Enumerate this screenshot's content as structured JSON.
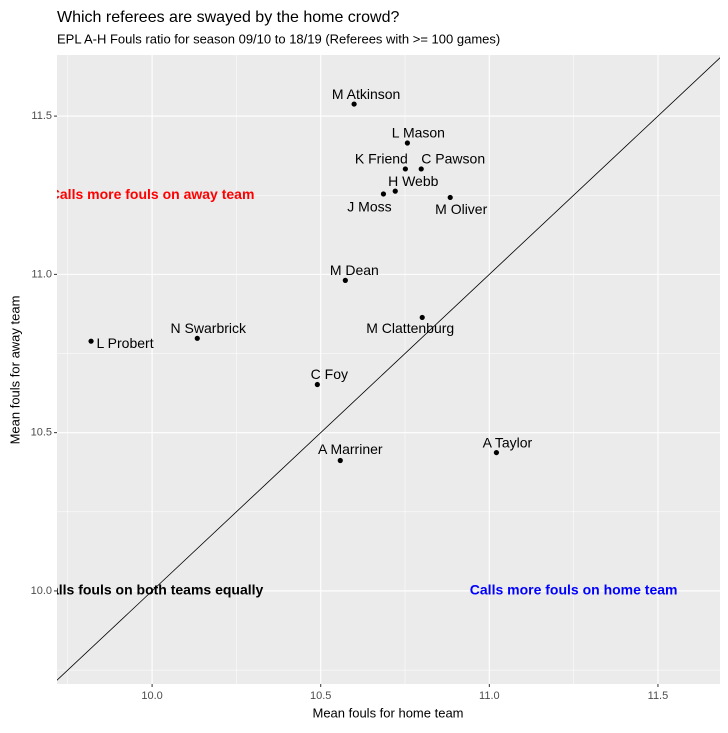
{
  "chart_data": {
    "type": "scatter",
    "title": "Which referees are swayed by the home crowd?",
    "subtitle": "EPL A-H Fouls ratio for season 09/10 to 18/19 (Referees with >= 100 games)",
    "x_label": "Mean fouls for home team",
    "y_label": "Mean fouls for away team",
    "labels": [
      "M Atkinson",
      "L Mason",
      "K Friend",
      "C Pawson",
      "H Webb",
      "J Moss",
      "M Oliver",
      "M Dean",
      "N Swarbrick",
      "L Probert",
      "M Clattenburg",
      "C Foy",
      "A Marriner",
      "A Taylor"
    ],
    "x": [
      10.599,
      10.757,
      10.751,
      10.798,
      10.721,
      10.686,
      10.884,
      10.573,
      10.134,
      9.819,
      10.801,
      10.49,
      10.558,
      11.021
    ],
    "values": [
      11.538,
      11.415,
      11.333,
      11.333,
      11.263,
      11.254,
      11.243,
      10.981,
      10.798,
      10.789,
      10.864,
      10.652,
      10.412,
      10.437
    ],
    "color": "#000000",
    "reference_line": "y = x",
    "annotations": [
      {
        "text": "Calls more fouls on away team",
        "x": 10.0,
        "y": 11.25,
        "color": "#ff0000"
      },
      {
        "text": "Calls fouls on both teams equally",
        "x": 10.0,
        "y": 10.0,
        "color": "#000000"
      },
      {
        "text": "Calls more fouls on home team",
        "x": 11.25,
        "y": 10.0,
        "color": "#0000ff"
      }
    ],
    "xlim": [
      9.718,
      11.684
    ],
    "ylim": [
      9.706,
      11.693
    ],
    "xticks": [
      {
        "value": 10,
        "label": "10.0"
      },
      {
        "value": 10.5,
        "label": "10.5"
      },
      {
        "value": 11,
        "label": "11.0"
      },
      {
        "value": 11.5,
        "label": "11.5"
      }
    ],
    "yticks": [
      {
        "value": 10,
        "label": "10.0"
      },
      {
        "value": 10.5,
        "label": "10.5"
      },
      {
        "value": 11,
        "label": "11.0"
      },
      {
        "value": 11.5,
        "label": "11.5"
      }
    ],
    "grid": true
  }
}
